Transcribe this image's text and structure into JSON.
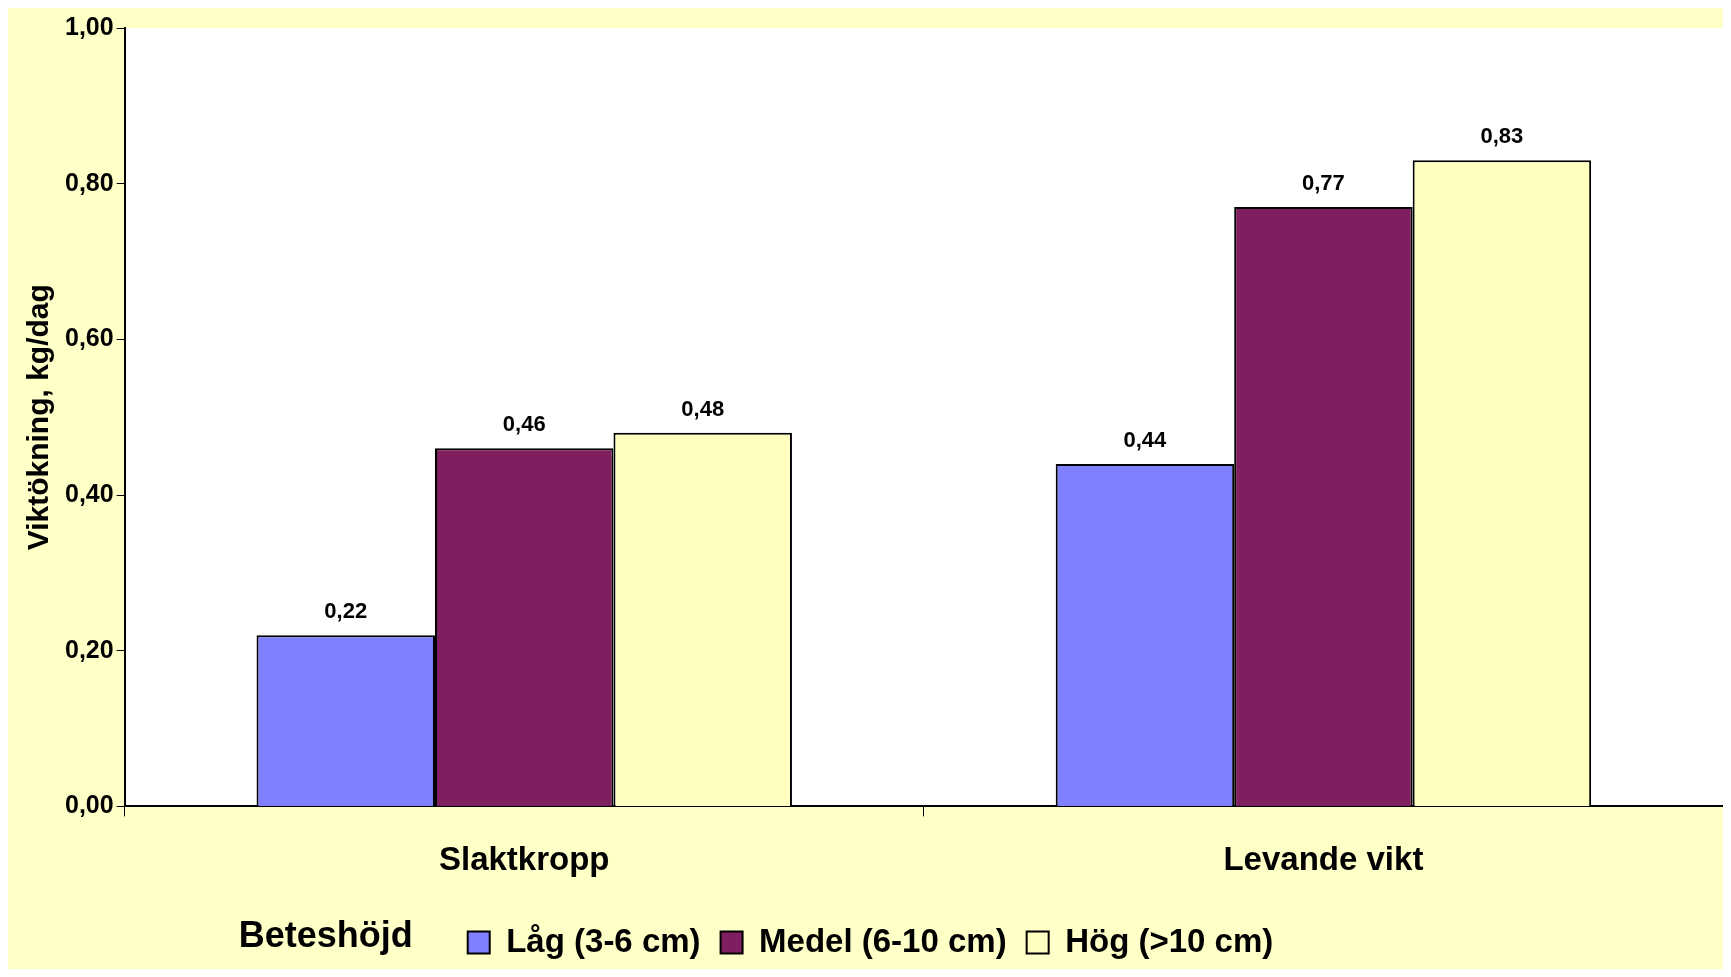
{
  "chart_data": {
    "type": "bar",
    "ylabel": "Viktökning, kg/dag",
    "legend_title": "Beteshöjd",
    "categories": [
      "Slaktkropp",
      "Levande vikt"
    ],
    "series": [
      {
        "name": "Låg (3-6 cm)",
        "color": "#8080ff",
        "values": [
          0.22,
          0.44
        ],
        "value_labels": [
          "0,22",
          "0,44"
        ]
      },
      {
        "name": "Medel (6-10 cm)",
        "color": "#7f1f5f",
        "values": [
          0.46,
          0.77
        ],
        "value_labels": [
          "0,46",
          "0,77"
        ]
      },
      {
        "name": "Hög (>10 cm)",
        "color": "#ffffc0",
        "values": [
          0.48,
          0.83
        ],
        "value_labels": [
          "0,48",
          "0,83"
        ]
      }
    ],
    "ylim": [
      0,
      1
    ],
    "yticks": [
      {
        "value": 0,
        "label": "0,00"
      },
      {
        "value": 0.2,
        "label": "0,20"
      },
      {
        "value": 0.4,
        "label": "0,40"
      },
      {
        "value": 0.6,
        "label": "0,60"
      },
      {
        "value": 0.8,
        "label": "0,80"
      },
      {
        "value": 1,
        "label": "1,00"
      }
    ],
    "grid": false,
    "legend": "bottom"
  }
}
